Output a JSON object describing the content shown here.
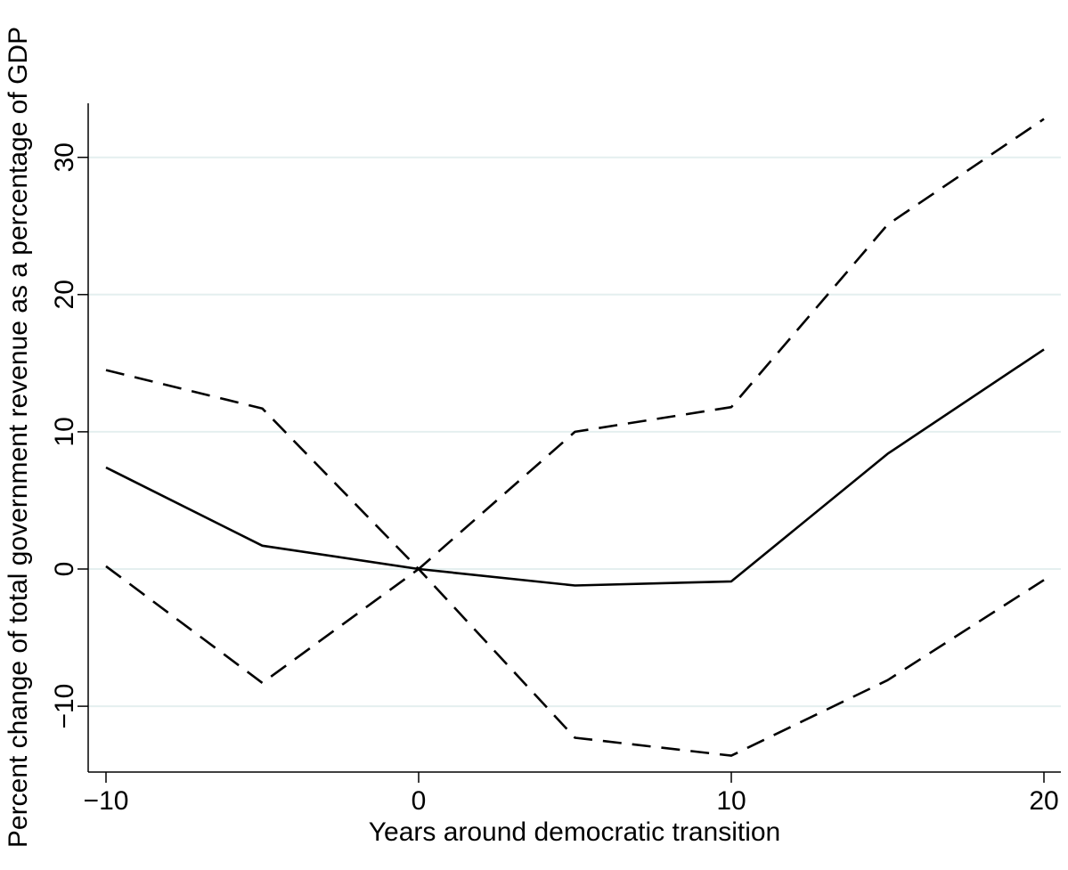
{
  "chart_data": {
    "type": "line",
    "title": "",
    "xlabel": "Years around democratic transition",
    "ylabel": "Percent change of total government revenue as a percentage of GDP",
    "xlim": [
      -11,
      20.5
    ],
    "ylim": [
      -14.5,
      34
    ],
    "xticks": [
      -10,
      0,
      10,
      20
    ],
    "xtick_labels": [
      "−10",
      "0",
      "10",
      "20"
    ],
    "yticks": [
      -10,
      0,
      10,
      20,
      30
    ],
    "ytick_labels": [
      "−10",
      "0",
      "10",
      "20",
      "30"
    ],
    "grid": true,
    "legend": "none",
    "x": [
      -10,
      -5,
      0,
      5,
      10,
      15,
      20
    ],
    "series": [
      {
        "style": "solid",
        "color": "#000000",
        "values": [
          7.4,
          1.7,
          0,
          -1.2,
          -0.9,
          8.4,
          16.0
        ]
      },
      {
        "style": "dashed",
        "color": "#000000",
        "values": [
          14.5,
          11.7,
          0,
          10.0,
          11.8,
          25.1,
          32.8
        ]
      },
      {
        "style": "dashed",
        "color": "#000000",
        "values": [
          0.2,
          -8.3,
          0,
          -12.3,
          -13.6,
          -8.1,
          -0.8
        ]
      }
    ],
    "grid_color": "#e4efef"
  }
}
